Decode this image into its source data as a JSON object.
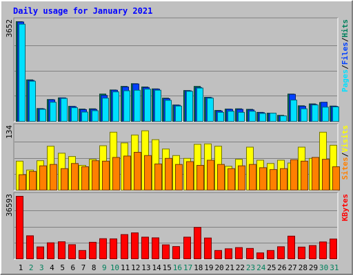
{
  "chart_data": [
    {
      "type": "bar",
      "panel": "hits-files-pages",
      "title": "Daily usage for January 2021",
      "ylabel_max": "3652",
      "ylim": [
        0,
        3652
      ],
      "grid": true,
      "legend": [
        {
          "text": "Pages",
          "color": "#00E0FF"
        },
        {
          "text": "/",
          "color": "#000000"
        },
        {
          "text": "Files",
          "color": "#0040FF"
        },
        {
          "text": "/",
          "color": "#000000"
        },
        {
          "text": "Hits",
          "color": "#00805C"
        }
      ],
      "categories": [
        "1",
        "2",
        "3",
        "4",
        "5",
        "6",
        "7",
        "8",
        "9",
        "10",
        "11",
        "12",
        "13",
        "14",
        "15",
        "16",
        "17",
        "18",
        "19",
        "20",
        "21",
        "22",
        "23",
        "24",
        "25",
        "26",
        "27",
        "28",
        "29",
        "30",
        "31"
      ],
      "series": [
        {
          "name": "Hits",
          "color": "#00805C",
          "values": [
            3652,
            1520,
            470,
            800,
            860,
            550,
            450,
            460,
            1000,
            1150,
            1280,
            1380,
            1260,
            1190,
            850,
            600,
            1130,
            1280,
            880,
            400,
            450,
            460,
            440,
            330,
            300,
            220,
            1000,
            570,
            640,
            690,
            560
          ]
        },
        {
          "name": "Files",
          "color": "#0040FF",
          "values": [
            3640,
            1500,
            460,
            790,
            860,
            540,
            430,
            440,
            950,
            1140,
            1260,
            1370,
            1240,
            1180,
            830,
            590,
            1120,
            1240,
            870,
            380,
            440,
            440,
            420,
            320,
            290,
            200,
            990,
            550,
            620,
            700,
            550
          ]
        },
        {
          "name": "Pages",
          "color": "#00E0FF",
          "values": [
            3560,
            1470,
            440,
            700,
            840,
            500,
            340,
            390,
            850,
            1080,
            1120,
            1140,
            1180,
            1140,
            770,
            560,
            1100,
            1220,
            850,
            330,
            370,
            330,
            370,
            290,
            300,
            200,
            780,
            460,
            600,
            520,
            530
          ]
        }
      ]
    },
    {
      "type": "bar",
      "panel": "visits-sites",
      "ylabel_max": "134",
      "ylim": [
        0,
        134
      ],
      "grid": true,
      "legend": [
        {
          "text": "Sites",
          "color": "#FF8000"
        },
        {
          "text": "/",
          "color": "#000000"
        },
        {
          "text": "Visits",
          "color": "#FFFF00"
        }
      ],
      "categories": [
        "1",
        "2",
        "3",
        "4",
        "5",
        "6",
        "7",
        "8",
        "9",
        "10",
        "11",
        "12",
        "13",
        "14",
        "15",
        "16",
        "17",
        "18",
        "19",
        "20",
        "21",
        "22",
        "23",
        "24",
        "25",
        "26",
        "27",
        "28",
        "29",
        "30",
        "31"
      ],
      "series": [
        {
          "name": "Visits",
          "color": "#FFFF00",
          "values": [
            62,
            43,
            63,
            94,
            79,
            72,
            53,
            66,
            95,
            124,
            101,
            118,
            127,
            108,
            88,
            74,
            68,
            98,
            99,
            94,
            51,
            66,
            92,
            64,
            57,
            64,
            58,
            92,
            68,
            124,
            96
          ]
        },
        {
          "name": "Sites",
          "color": "#FF8000",
          "values": [
            33,
            40,
            52,
            55,
            46,
            57,
            50,
            63,
            62,
            70,
            73,
            81,
            74,
            56,
            68,
            55,
            61,
            53,
            64,
            55,
            46,
            52,
            55,
            48,
            44,
            46,
            65,
            62,
            70,
            66,
            50
          ]
        }
      ]
    },
    {
      "type": "bar",
      "panel": "kbytes",
      "ylabel_max": "36593",
      "ylim": [
        0,
        36593
      ],
      "grid": true,
      "legend": [
        {
          "text": "KBytes",
          "color": "#FF0000"
        }
      ],
      "categories": [
        "1",
        "2",
        "3",
        "4",
        "5",
        "6",
        "7",
        "8",
        "9",
        "10",
        "11",
        "12",
        "13",
        "14",
        "15",
        "16",
        "17",
        "18",
        "19",
        "20",
        "21",
        "22",
        "23",
        "24",
        "25",
        "26",
        "27",
        "28",
        "29",
        "30",
        "31"
      ],
      "series": [
        {
          "name": "KBytes",
          "color": "#FF0000",
          "values": [
            36593,
            13500,
            7000,
            9400,
            10000,
            8300,
            4900,
            9700,
            11800,
            11700,
            14200,
            15200,
            12700,
            12300,
            8200,
            7200,
            12700,
            18400,
            12200,
            4900,
            5900,
            6600,
            6100,
            3500,
            4900,
            7100,
            13300,
            6900,
            7800,
            9900,
            11600
          ]
        }
      ]
    }
  ],
  "x_axis": {
    "weekend_days": [
      "2",
      "3",
      "9",
      "10",
      "16",
      "17",
      "23",
      "24",
      "30",
      "31"
    ],
    "weekday_color": "#000000",
    "weekend_color": "#00805C"
  },
  "colors": {
    "background": "#C0C0C0",
    "title": "#0000FF",
    "grid": "#808080"
  }
}
